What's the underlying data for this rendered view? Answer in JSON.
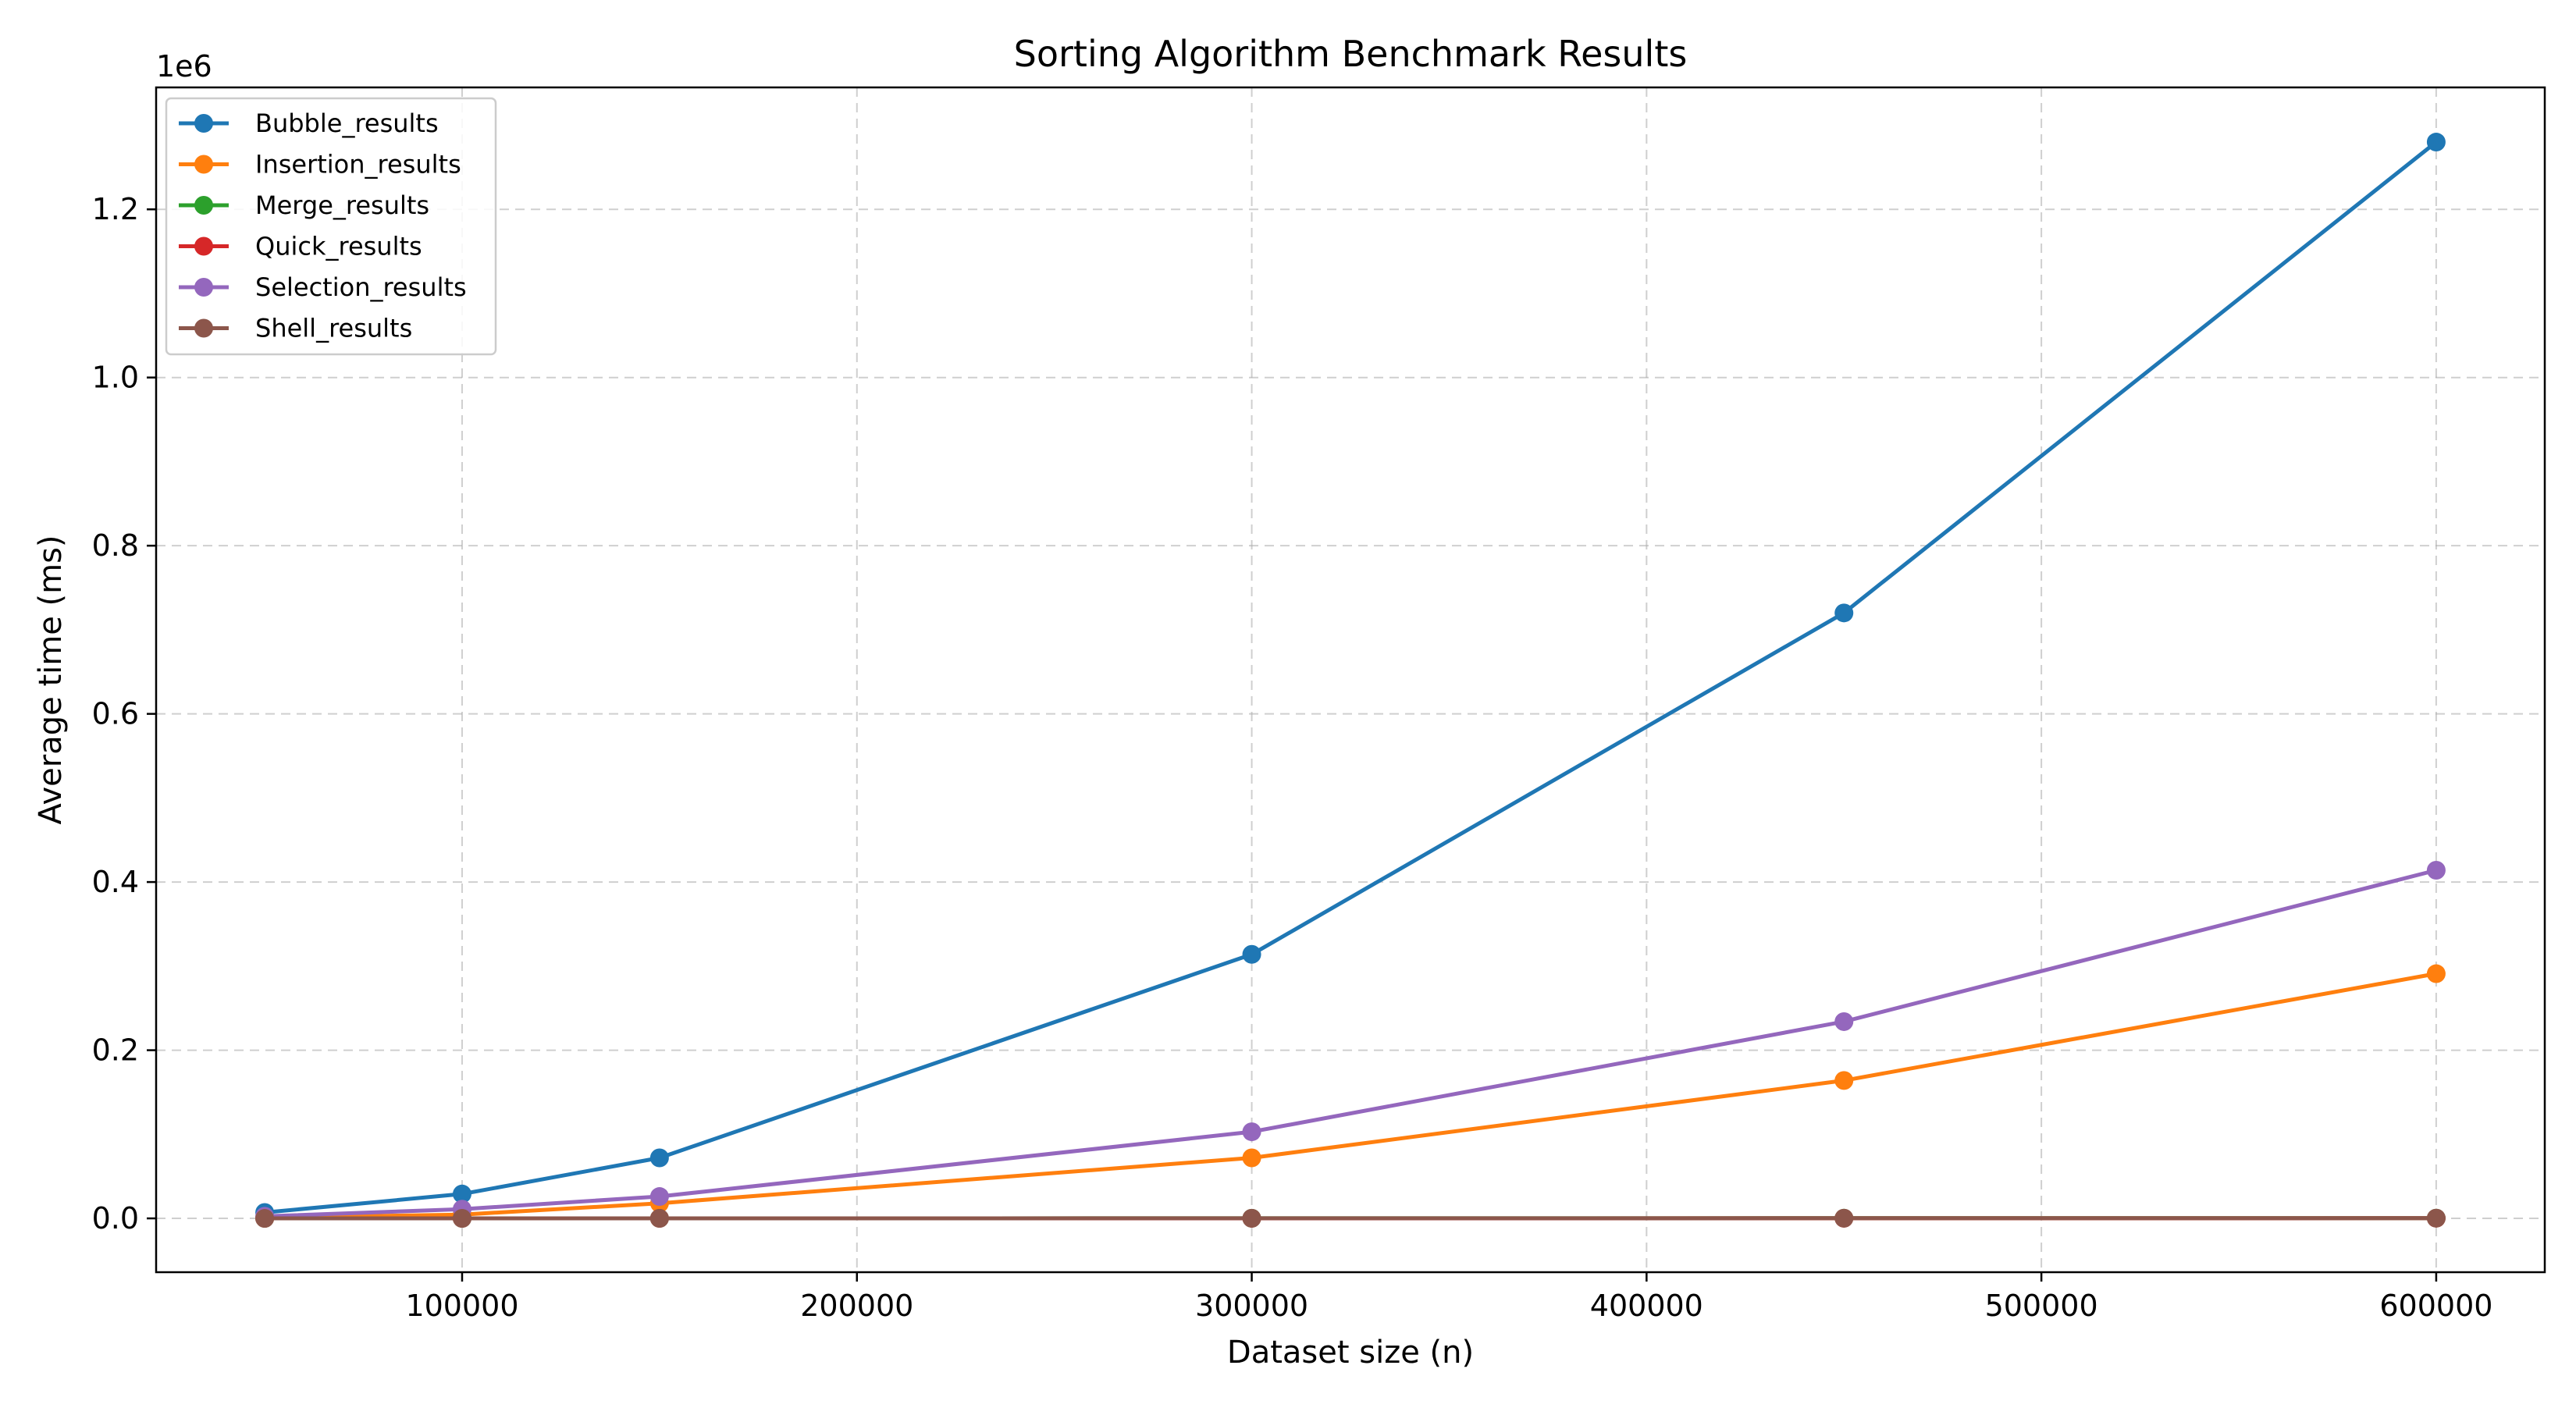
{
  "chart_data": {
    "type": "line",
    "title": "Sorting Algorithm Benchmark Results",
    "xlabel": "Dataset size (n)",
    "ylabel": "Average time (ms)",
    "y_offset_label": "1e6",
    "xlim": [
      22500,
      627500
    ],
    "ylim": [
      -64000,
      1345000
    ],
    "x_ticks": [
      100000,
      200000,
      300000,
      400000,
      500000,
      600000
    ],
    "x_tick_labels": [
      "100000",
      "200000",
      "300000",
      "400000",
      "500000",
      "600000"
    ],
    "y_ticks": [
      0,
      200000,
      400000,
      600000,
      800000,
      1000000,
      1200000
    ],
    "y_tick_labels": [
      "0.0",
      "0.2",
      "0.4",
      "0.6",
      "0.8",
      "1.0",
      "1.2"
    ],
    "grid": true,
    "legend_position": "top-left",
    "x": [
      50000,
      100000,
      150000,
      300000,
      450000,
      600000
    ],
    "series": [
      {
        "name": "Bubble_results",
        "color": "#1f77b4",
        "values": [
          7000,
          29000,
          72000,
          314000,
          720000,
          1280000
        ]
      },
      {
        "name": "Insertion_results",
        "color": "#ff7f0e",
        "values": [
          1000,
          4500,
          18000,
          72000,
          164000,
          291000
        ]
      },
      {
        "name": "Merge_results",
        "color": "#2ca02c",
        "values": [
          20,
          45,
          70,
          150,
          230,
          320
        ]
      },
      {
        "name": "Quick_results",
        "color": "#d62728",
        "values": [
          10,
          25,
          40,
          90,
          140,
          190
        ]
      },
      {
        "name": "Selection_results",
        "color": "#9467bd",
        "values": [
          2500,
          11000,
          26000,
          103000,
          234000,
          414000
        ]
      },
      {
        "name": "Shell_results",
        "color": "#8c564b",
        "values": [
          15,
          35,
          60,
          130,
          210,
          290
        ]
      }
    ]
  }
}
